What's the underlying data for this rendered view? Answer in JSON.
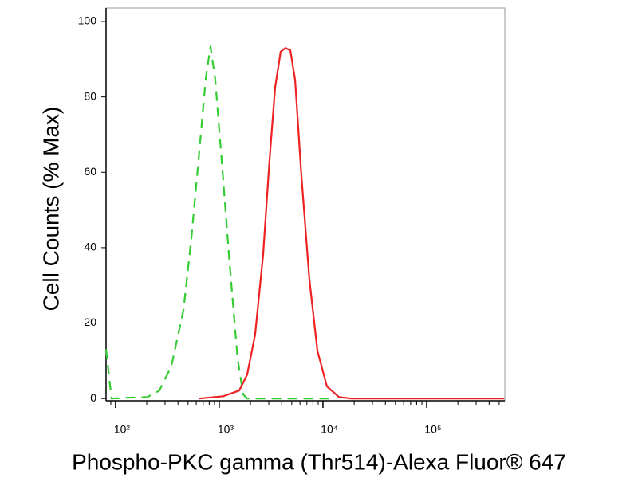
{
  "chart_data": {
    "type": "line",
    "x_label": "Phospho-PKC gamma (Thr514)-Alexa Fluor® 647",
    "y_label": "Cell Counts (% Max)",
    "xscale": "log",
    "xlim": [
      81,
      567000
    ],
    "ylim": [
      -0.6,
      103.6
    ],
    "xticks": [
      {
        "value": 100,
        "label": "10²"
      },
      {
        "value": 1000,
        "label": "10³"
      },
      {
        "value": 10000,
        "label": "10⁴"
      },
      {
        "value": 100000,
        "label": "10⁵"
      }
    ],
    "xminorticks": [
      90,
      200,
      300,
      400,
      500,
      600,
      700,
      800,
      900,
      2000,
      3000,
      4000,
      5000,
      6000,
      7000,
      8000,
      9000,
      20000,
      30000,
      40000,
      50000,
      60000,
      70000,
      80000,
      90000,
      200000,
      300000,
      400000,
      500000
    ],
    "yticks": [
      0,
      20,
      40,
      60,
      80,
      100
    ],
    "series": [
      {
        "color": "#33cc33",
        "dashed": true,
        "x": [
          81,
          91.5,
          130,
          203,
          265,
          345,
          451,
          538,
          642,
          740,
          823,
          915,
          1054,
          1259,
          1503,
          1701,
          1858,
          13030
        ],
        "values": [
          13.1,
          0,
          0.2,
          0.4,
          2.1,
          8.5,
          23.3,
          42.3,
          65.5,
          84.6,
          93.4,
          84.6,
          63.4,
          35.9,
          10.6,
          1.1,
          0,
          0
        ]
      },
      {
        "color": "#ee2222",
        "dashed": false,
        "x": [
          642,
          1092,
          1556,
          1858,
          2218,
          2648,
          3053,
          3455,
          3908,
          4346,
          4840,
          5384,
          6197,
          7397,
          8832,
          10918,
          14250,
          18590,
          560000
        ],
        "values": [
          0,
          0.6,
          2.1,
          6.3,
          16.9,
          38,
          63.4,
          82.5,
          92,
          93,
          92.4,
          84.6,
          59.2,
          31.7,
          12.7,
          3.2,
          0.4,
          0,
          0
        ]
      }
    ]
  }
}
